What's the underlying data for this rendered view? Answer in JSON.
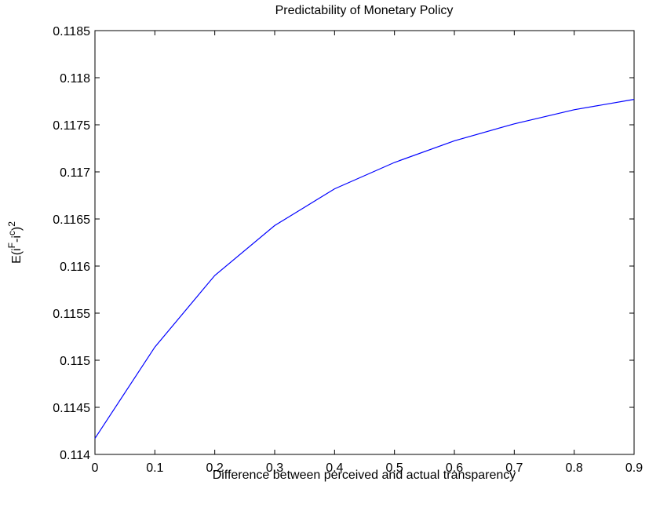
{
  "chart_data": {
    "type": "line",
    "title": "Predictability of Monetary Policy",
    "xlabel": "Difference between perceived and actual transparency",
    "ylabel": [
      "E(i",
      "F",
      "-i",
      "c",
      ")",
      "2"
    ],
    "x": [
      0,
      0.1,
      0.2,
      0.3,
      0.4,
      0.5,
      0.6,
      0.7,
      0.8,
      0.9
    ],
    "series": [
      {
        "color": "#0000ff",
        "values": [
          0.11417,
          0.11514,
          0.1159,
          0.11643,
          0.11682,
          0.1171,
          0.11733,
          0.11751,
          0.11766,
          0.11777
        ]
      }
    ],
    "xlim": [
      0,
      0.9
    ],
    "xticks": [
      0,
      0.1,
      0.2,
      0.3,
      0.4,
      0.5,
      0.6,
      0.7,
      0.8,
      0.9
    ],
    "ylim": [
      0.114,
      0.1185
    ],
    "yticks": [
      0.114,
      0.1145,
      0.115,
      0.1155,
      0.116,
      0.1165,
      0.117,
      0.1175,
      0.118,
      0.1185
    ],
    "grid": false
  }
}
